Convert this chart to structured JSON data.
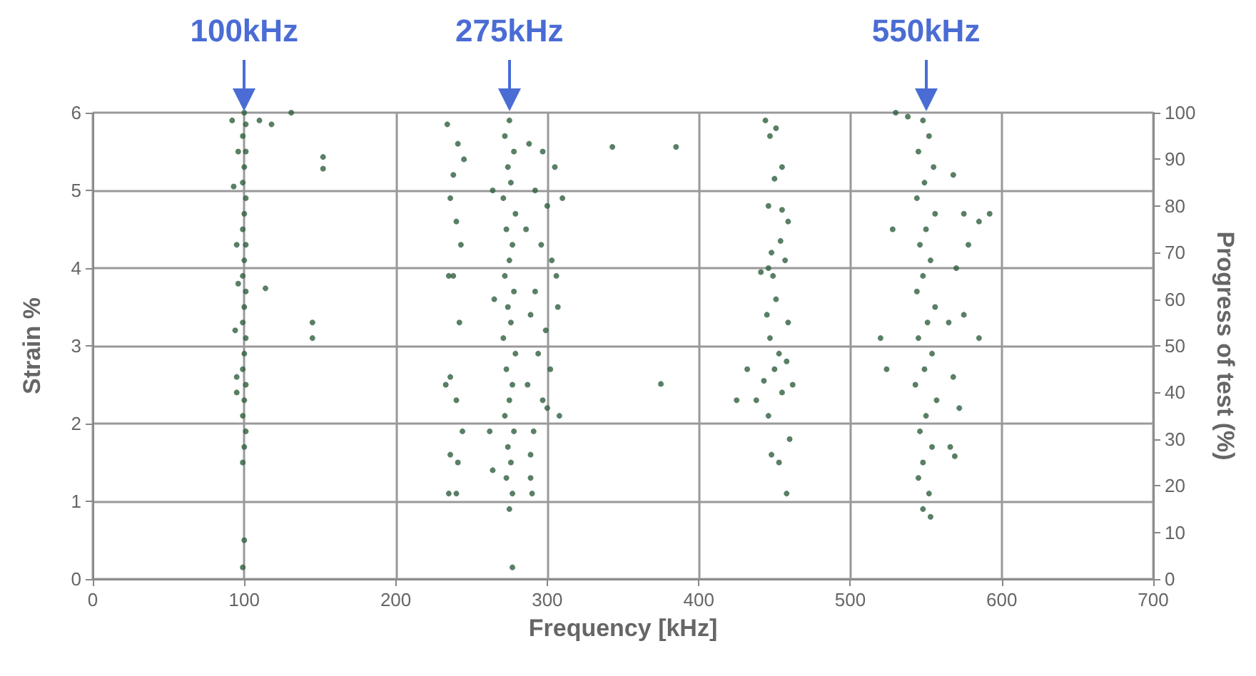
{
  "chart_data": {
    "type": "scatter",
    "xlabel": "Frequency [kHz]",
    "ylabel": "Strain %",
    "y2label": "Progress of test (%)",
    "x": [
      100,
      101,
      99,
      101,
      100,
      99,
      101,
      100,
      99,
      101,
      100,
      99,
      101,
      100,
      99,
      101,
      100,
      99,
      101,
      100,
      99,
      101,
      100,
      99,
      100,
      99,
      92,
      96,
      93,
      95,
      96,
      94,
      95,
      95,
      110,
      118,
      131,
      114,
      152,
      152,
      145,
      145,
      275,
      272,
      278,
      274,
      276,
      271,
      279,
      273,
      277,
      275,
      272,
      278,
      274,
      276,
      271,
      279,
      273,
      277,
      275,
      272,
      278,
      274,
      276,
      273,
      277,
      275,
      277,
      234,
      241,
      238,
      245,
      236,
      240,
      243,
      238,
      235,
      242,
      236,
      240,
      233,
      244,
      236,
      241,
      235,
      240,
      264,
      265,
      262,
      264,
      288,
      297,
      305,
      292,
      300,
      310,
      286,
      296,
      303,
      292,
      306,
      289,
      299,
      307,
      294,
      302,
      287,
      297,
      308,
      291,
      300,
      289,
      289,
      290,
      343,
      385,
      375,
      444,
      447,
      451,
      450,
      455,
      446,
      455,
      459,
      448,
      454,
      441,
      449,
      457,
      451,
      445,
      459,
      447,
      453,
      432,
      443,
      450,
      458,
      438,
      446,
      455,
      425,
      448,
      453,
      460,
      458,
      462,
      446,
      548,
      552,
      545,
      555,
      549,
      544,
      556,
      550,
      546,
      553,
      548,
      544,
      556,
      551,
      545,
      554,
      549,
      543,
      557,
      550,
      546,
      554,
      548,
      545,
      552,
      548,
      553,
      530,
      538,
      528,
      520,
      524,
      568,
      575,
      585,
      592,
      578,
      570,
      565,
      575,
      585,
      568,
      572,
      566,
      569
    ],
    "values": [
      6.0,
      5.85,
      5.7,
      5.5,
      5.3,
      5.1,
      4.9,
      4.7,
      4.5,
      4.3,
      4.1,
      3.9,
      3.7,
      3.5,
      3.3,
      3.1,
      2.9,
      2.7,
      2.5,
      2.3,
      2.1,
      1.9,
      1.7,
      1.5,
      0.5,
      0.15,
      5.9,
      5.5,
      5.05,
      4.3,
      3.8,
      3.2,
      2.6,
      2.4,
      5.9,
      5.85,
      6.0,
      3.74,
      5.43,
      5.28,
      3.3,
      3.1,
      5.9,
      5.7,
      5.5,
      5.3,
      5.1,
      4.9,
      4.7,
      4.5,
      4.3,
      4.1,
      3.9,
      3.7,
      3.5,
      3.3,
      3.1,
      2.9,
      2.7,
      2.5,
      2.3,
      2.1,
      1.9,
      1.7,
      1.5,
      1.3,
      1.1,
      0.9,
      0.15,
      5.85,
      5.6,
      5.2,
      5.4,
      4.9,
      4.6,
      4.3,
      3.9,
      3.9,
      3.3,
      2.6,
      2.3,
      2.5,
      1.9,
      1.6,
      1.5,
      1.1,
      1.1,
      5.0,
      3.6,
      1.9,
      1.4,
      5.6,
      5.5,
      5.3,
      5.0,
      4.8,
      4.9,
      4.5,
      4.3,
      4.1,
      3.7,
      3.9,
      3.4,
      3.2,
      3.5,
      2.9,
      2.7,
      2.5,
      2.3,
      2.1,
      1.9,
      2.2,
      1.6,
      1.3,
      1.1,
      5.56,
      5.56,
      2.51,
      5.9,
      5.7,
      5.8,
      5.15,
      5.3,
      4.8,
      4.75,
      4.6,
      4.2,
      4.35,
      3.95,
      3.9,
      4.1,
      3.6,
      3.4,
      3.3,
      3.1,
      2.9,
      2.7,
      2.55,
      2.7,
      2.8,
      2.3,
      2.1,
      2.4,
      2.3,
      1.6,
      1.5,
      1.8,
      1.1,
      2.5,
      4.0,
      5.9,
      5.7,
      5.5,
      5.3,
      5.1,
      4.9,
      4.7,
      4.5,
      4.3,
      4.1,
      3.9,
      3.7,
      3.5,
      3.3,
      3.1,
      2.9,
      2.7,
      2.5,
      2.3,
      2.1,
      1.9,
      1.7,
      1.5,
      1.3,
      1.1,
      0.9,
      0.8,
      6.0,
      5.95,
      4.5,
      3.1,
      2.7,
      5.2,
      4.7,
      4.6,
      4.7,
      4.3,
      4.0,
      3.3,
      3.4,
      3.1,
      2.6,
      2.2,
      1.7,
      1.58
    ],
    "color": "#2f5f3f",
    "marker": "circle",
    "grid": true,
    "xlim": [
      0,
      700
    ],
    "xticks": [
      0,
      100,
      200,
      300,
      400,
      500,
      600,
      700
    ],
    "ylim": [
      0,
      6
    ],
    "yticks": [
      0,
      1,
      2,
      3,
      4,
      5,
      6
    ],
    "y2lim": [
      0,
      100
    ],
    "y2ticks": [
      0,
      10,
      20,
      30,
      40,
      50,
      60,
      70,
      80,
      90,
      100
    ],
    "annotations": [
      {
        "text": "100kHz",
        "x": 100,
        "y": 6
      },
      {
        "text": "275kHz",
        "x": 275,
        "y": 6
      },
      {
        "text": "550kHz",
        "x": 550,
        "y": 6
      }
    ]
  }
}
